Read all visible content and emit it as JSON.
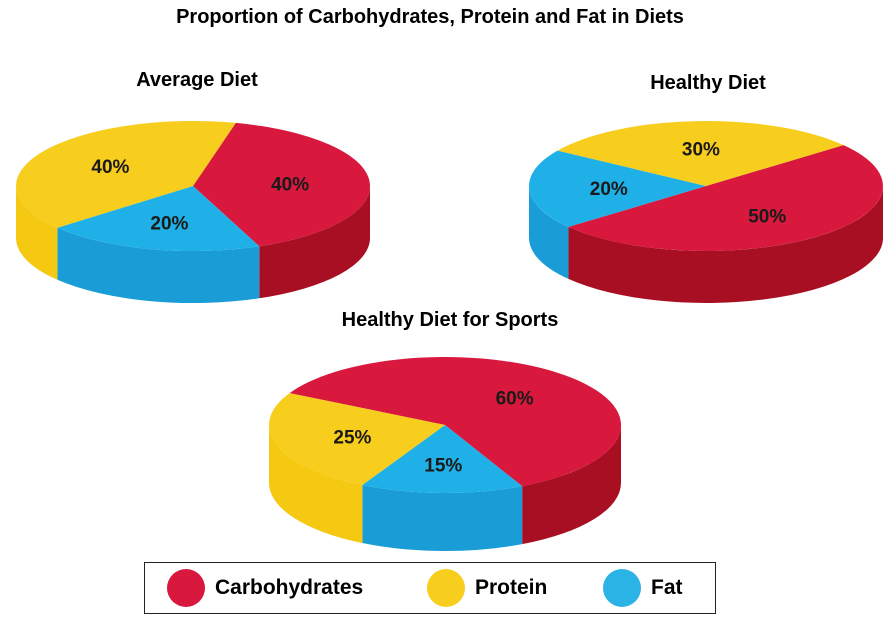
{
  "title": "Proportion of Carbohydrates, Protein and Fat in Diets",
  "colors": {
    "Carbohydrates": "#d8183c",
    "Protein": "#f7cd1e",
    "Fat": "#1eb0e6",
    "Carbohydrates_side": "#a80f22",
    "Protein_side": "#f5c811",
    "Fat_side": "#1a9dd6"
  },
  "legend": [
    {
      "name": "Carbohydrates",
      "color": "#d8183c"
    },
    {
      "name": "Protein",
      "color": "#f7cd1e"
    },
    {
      "name": "Fat",
      "color": "#2bb3e6"
    }
  ],
  "chart_data": [
    {
      "type": "pie",
      "title": "Average Diet",
      "categories": [
        "Carbohydrates",
        "Fat",
        "Protein"
      ],
      "values": [
        40,
        20,
        40
      ],
      "labels": [
        "40%",
        "20%",
        "40%"
      ]
    },
    {
      "type": "pie",
      "title": "Healthy Diet",
      "categories": [
        "Carbohydrates",
        "Fat",
        "Protein"
      ],
      "values": [
        50,
        20,
        30
      ],
      "labels": [
        "50%",
        "20%",
        "30%"
      ]
    },
    {
      "type": "pie",
      "title": "Healthy Diet for Sports",
      "categories": [
        "Carbohydrates",
        "Fat",
        "Protein"
      ],
      "values": [
        60,
        15,
        25
      ],
      "labels": [
        "60%",
        "15%",
        "25%"
      ]
    }
  ]
}
